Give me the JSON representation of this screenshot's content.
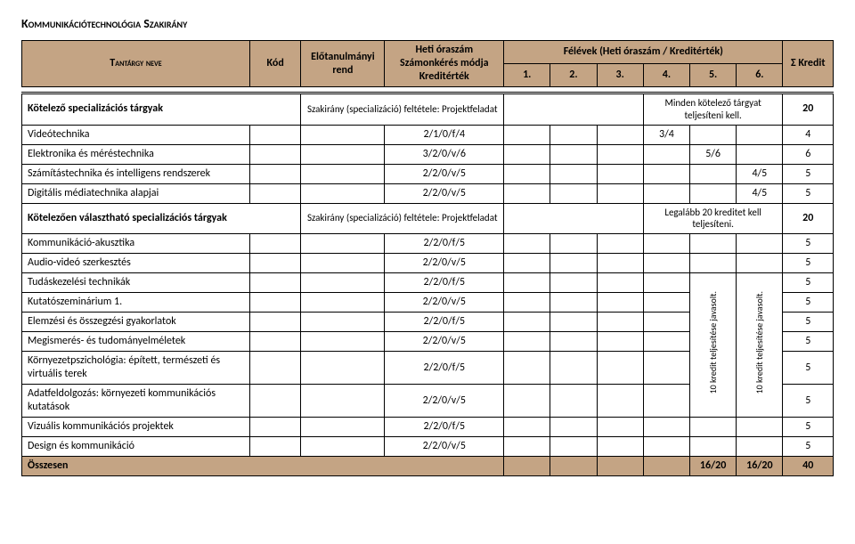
{
  "page_title": "Kommunikációtechnológia Szakirány",
  "header": {
    "name": "Tantárgy neve",
    "code": "Kód",
    "prereq": "Előtanulmányi rend",
    "weekly": "Heti óraszám Számonkérés módja Kreditérték",
    "semesters": "Félévek (Heti óraszám / Kreditérték)",
    "sum": "Σ Kredit",
    "s1": "1.",
    "s2": "2.",
    "s3": "3.",
    "s4": "4.",
    "s5": "5.",
    "s6": "6."
  },
  "sectionA": {
    "name": "Kötelező specializációs tárgyak",
    "cond": "Szakirány (specializáció) feltétele: Projektfeladat",
    "note": "Minden kötelező tárgyat teljesíteni kell.",
    "credit": "20"
  },
  "rowsA": [
    {
      "name": "Videótechnika",
      "heti": "2/1/0/f/4",
      "val": "3/4",
      "col": 4,
      "sum": "4"
    },
    {
      "name": "Elektronika és méréstechnika",
      "heti": "3/2/0/v/6",
      "val": "5/6",
      "col": 5,
      "sum": "6"
    },
    {
      "name": "Számítástechnika és intelligens rendszerek",
      "heti": "2/2/0/v/5",
      "val": "4/5",
      "col": 6,
      "sum": "5"
    },
    {
      "name": "Digitális médiatechnika alapjai",
      "heti": "2/2/0/v/5",
      "val": "4/5",
      "col": 6,
      "sum": "5"
    }
  ],
  "sectionB": {
    "name": "Kötelezően választható specializációs tárgyak",
    "cond": "Szakirány (specializáció) feltétele: Projektfeladat",
    "note": "Legalább 20 kreditet kell teljesíteni.",
    "credit": "20"
  },
  "rowsB_top": [
    {
      "name": "Kommunikáció-akusztika",
      "heti": "2/2/0/f/5",
      "sum": "5"
    },
    {
      "name": "Audio-videó szerkesztés",
      "heti": "2/2/0/v/5",
      "sum": "5"
    }
  ],
  "vlabel": "10 kredit teljesítése javasolt.",
  "rowsB_mid": [
    {
      "name": "Tudáskezelési technikák",
      "heti": "2/2/0/f/5",
      "sum": "5"
    },
    {
      "name": "Kutatószeminárium 1.",
      "heti": "2/2/0/v/5",
      "sum": "5"
    },
    {
      "name": "Elemzési és összegzési gyakorlatok",
      "heti": "2/2/0/f/5",
      "sum": "5"
    },
    {
      "name": "Megismerés- és tudományelméletek",
      "heti": "2/2/0/v/5",
      "sum": "5"
    },
    {
      "name": "Környezetpszichológia: épített, természeti és virtuális terek",
      "heti": "2/2/0/f/5",
      "sum": "5"
    },
    {
      "name": "Adatfeldolgozás: környezeti kommunikációs kutatások",
      "heti": "2/2/0/v/5",
      "sum": "5"
    }
  ],
  "rowsB_bot": [
    {
      "name": "Vizuális kommunikációs projektek",
      "heti": "2/2/0/f/5",
      "sum": "5"
    },
    {
      "name": "Design és kommunikáció",
      "heti": "2/2/0/v/5",
      "sum": "5"
    }
  ],
  "sumRow": {
    "label": "Összesen",
    "v5": "16/20",
    "v6": "16/20",
    "sum": "40"
  }
}
